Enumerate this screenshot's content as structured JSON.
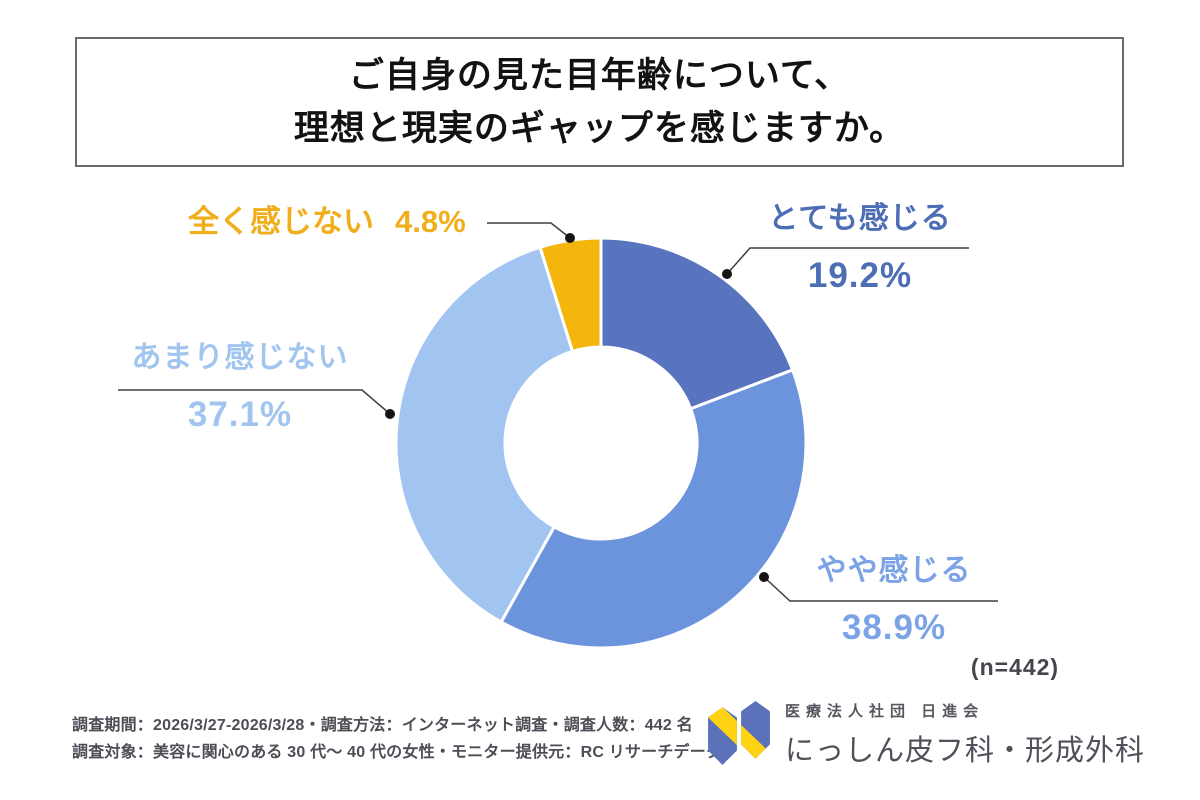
{
  "title": {
    "line1": "ご自身の見た目年齢について、",
    "line2": "理想と現実のギャップを感じますか。"
  },
  "chart_data": {
    "type": "pie",
    "subtype": "donut",
    "title": "ご自身の見た目年齢について、理想と現実のギャップを感じますか。",
    "sample_size_label": "(n=442)",
    "sample_size": 442,
    "start_angle_deg": -90,
    "direction": "clockwise",
    "inner_radius_ratio": 0.47,
    "segments": [
      {
        "label": "とても感じる",
        "value": 19.2,
        "pct_label": "19.2%",
        "color": "#5874bf",
        "text_color": "#4d6db5"
      },
      {
        "label": "やや感じる",
        "value": 38.9,
        "pct_label": "38.9%",
        "color": "#6c94dd",
        "text_color": "#7ca3e6"
      },
      {
        "label": "あまり感じない",
        "value": 37.1,
        "pct_label": "37.1%",
        "color": "#a2c4f1",
        "text_color": "#a2c5f0"
      },
      {
        "label": "全く感じない",
        "value": 4.8,
        "pct_label": "4.8%",
        "color": "#f4b60c",
        "text_color": "#f0ae1b"
      }
    ]
  },
  "footer": {
    "line1": "調査期間：2026/3/27-2026/3/28・調査方法：インターネット調査・調査人数：442 名",
    "line2": "調査対象：美容に関心のある 30 代～ 40 代の女性・モニター提供元：RC リサーチデータ"
  },
  "logo": {
    "org": "医療法人社団 日進会",
    "name": "にっしん皮フ科・形成外科",
    "mark_blue": "#5b72bb",
    "mark_yellow": "#ffd314"
  }
}
